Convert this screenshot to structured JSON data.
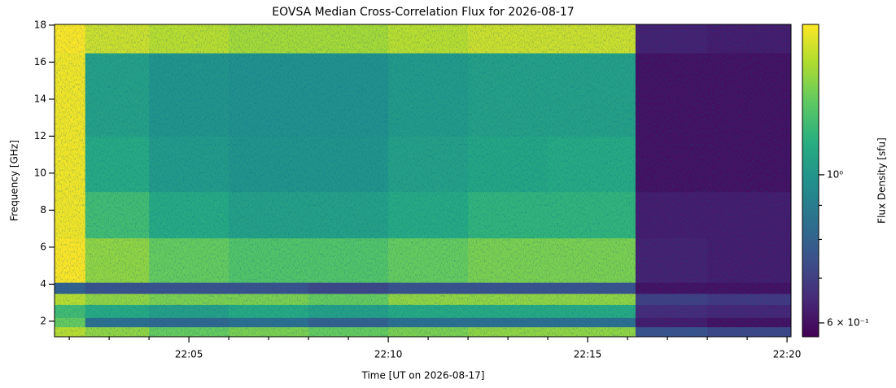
{
  "chart_data": {
    "type": "heatmap",
    "title": "EOVSA Median Cross-Correlation Flux for 2026-08-17",
    "xlabel": "Time [UT on 2026-08-17]",
    "ylabel": "Frequency [GHz]",
    "colorbar_label": "Flux Density [sfu]",
    "colormap": "viridis",
    "color_log": true,
    "clim": [
      0.572,
      1.68
    ],
    "cticks": [
      {
        "value": 1,
        "label": "10⁰"
      },
      {
        "value": 0.6,
        "label": "6 × 10⁻¹"
      }
    ],
    "cminor": [
      0.7,
      0.8,
      0.9
    ],
    "xlim": [
      1321.63,
      1340.1
    ],
    "xticks": [
      {
        "value": 1325,
        "label": "22:05"
      },
      {
        "value": 1330,
        "label": "22:10"
      },
      {
        "value": 1335,
        "label": "22:15"
      },
      {
        "value": 1340,
        "label": "22:20"
      }
    ],
    "xminor": [
      1322,
      1323,
      1324,
      1326,
      1327,
      1328,
      1329,
      1331,
      1332,
      1333,
      1334,
      1336,
      1337,
      1338,
      1339
    ],
    "ylim": [
      1.16,
      18.04
    ],
    "yticks": [
      2,
      4,
      6,
      8,
      10,
      12,
      14,
      16,
      18
    ],
    "xbins": [
      1321.63,
      1322.4,
      1324,
      1326,
      1328,
      1330,
      1332,
      1334,
      1336.2,
      1338,
      1340.1
    ],
    "ybins": [
      1.16,
      1.7,
      2.2,
      2.9,
      3.5,
      4.1,
      6.5,
      9,
      12,
      14.5,
      16.5,
      18.04
    ],
    "z": [
      [
        1.5,
        1.4,
        1.3,
        1.35,
        1.3,
        1.35,
        1.4,
        1.4,
        0.75,
        0.72
      ],
      [
        1.3,
        0.85,
        0.82,
        0.85,
        0.8,
        0.85,
        0.85,
        0.85,
        0.62,
        0.6
      ],
      [
        1.2,
        1.1,
        1.05,
        1.1,
        1.05,
        1.1,
        1.1,
        1.1,
        0.65,
        0.64
      ],
      [
        1.5,
        1.4,
        1.35,
        1.35,
        1.3,
        1.4,
        1.4,
        1.4,
        0.7,
        0.68
      ],
      [
        0.8,
        0.75,
        0.75,
        0.75,
        0.72,
        0.75,
        0.75,
        0.75,
        0.6,
        0.6
      ],
      [
        1.7,
        1.4,
        1.3,
        1.25,
        1.25,
        1.3,
        1.35,
        1.35,
        0.63,
        0.62
      ],
      [
        1.65,
        1.2,
        1.1,
        1.05,
        1.05,
        1.1,
        1.15,
        1.15,
        0.62,
        0.62
      ],
      [
        1.65,
        1.1,
        1.02,
        1.0,
        1.0,
        1.05,
        1.08,
        1.1,
        0.6,
        0.6
      ],
      [
        1.65,
        1.05,
        1.0,
        0.98,
        0.98,
        1.02,
        1.05,
        1.05,
        0.6,
        0.6
      ],
      [
        1.65,
        1.05,
        1.0,
        0.98,
        0.98,
        1.02,
        1.05,
        1.05,
        0.6,
        0.6
      ],
      [
        1.7,
        1.55,
        1.5,
        1.45,
        1.45,
        1.5,
        1.55,
        1.55,
        0.63,
        0.62
      ]
    ]
  }
}
